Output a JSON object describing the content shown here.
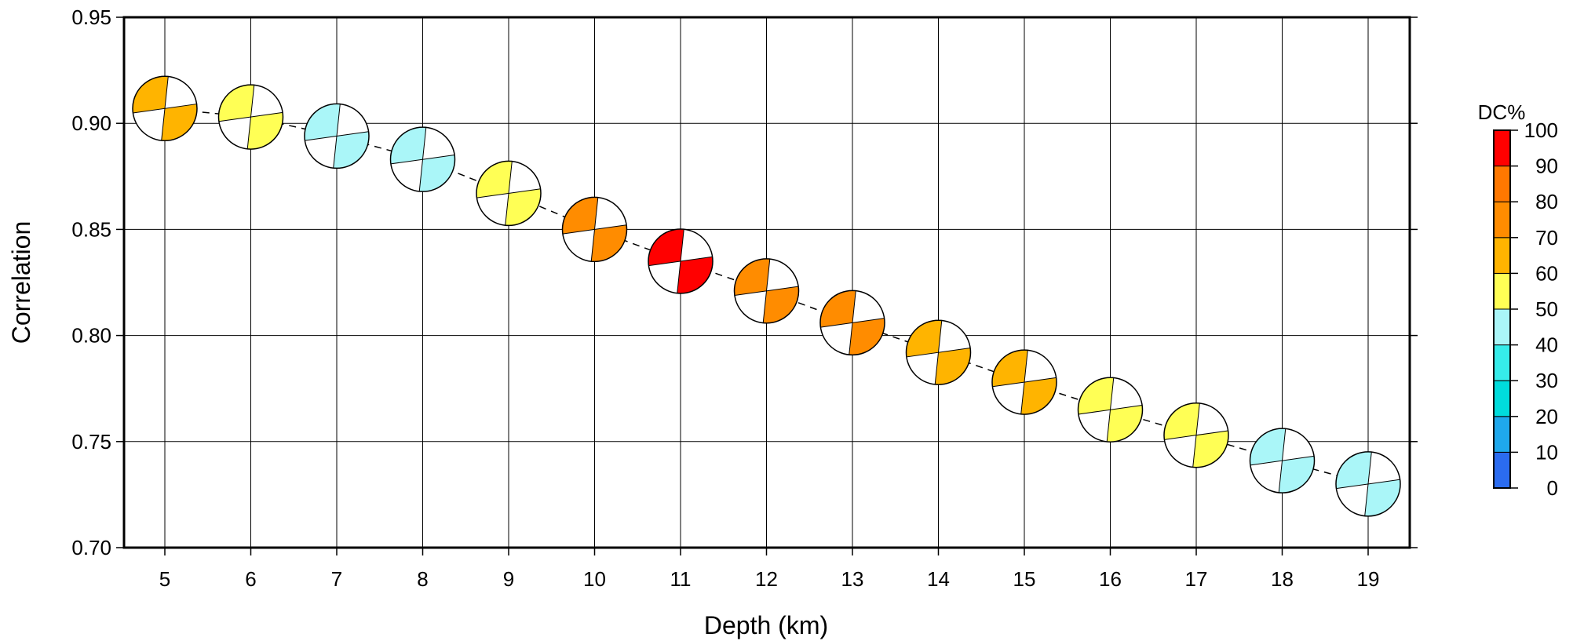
{
  "chart_data": {
    "type": "scatter",
    "xlabel": "Depth (km)",
    "ylabel": "Correlation",
    "xlim": [
      4.5,
      19.5
    ],
    "ylim": [
      0.7,
      0.95
    ],
    "x_ticks": [
      "5",
      "6",
      "7",
      "8",
      "9",
      "10",
      "11",
      "12",
      "13",
      "14",
      "15",
      "16",
      "17",
      "18",
      "19"
    ],
    "y_ticks": [
      "0.70",
      "0.75",
      "0.80",
      "0.85",
      "0.90",
      "0.95"
    ],
    "grid": true,
    "connector": "dashed",
    "points": [
      {
        "depth": 5,
        "correlation": 0.907,
        "dc_percent": 62
      },
      {
        "depth": 6,
        "correlation": 0.903,
        "dc_percent": 55
      },
      {
        "depth": 7,
        "correlation": 0.894,
        "dc_percent": 45
      },
      {
        "depth": 8,
        "correlation": 0.883,
        "dc_percent": 45
      },
      {
        "depth": 9,
        "correlation": 0.867,
        "dc_percent": 55
      },
      {
        "depth": 10,
        "correlation": 0.85,
        "dc_percent": 77
      },
      {
        "depth": 11,
        "correlation": 0.835,
        "dc_percent": 95
      },
      {
        "depth": 12,
        "correlation": 0.821,
        "dc_percent": 78
      },
      {
        "depth": 13,
        "correlation": 0.806,
        "dc_percent": 76
      },
      {
        "depth": 14,
        "correlation": 0.792,
        "dc_percent": 65
      },
      {
        "depth": 15,
        "correlation": 0.778,
        "dc_percent": 65
      },
      {
        "depth": 16,
        "correlation": 0.765,
        "dc_percent": 55
      },
      {
        "depth": 17,
        "correlation": 0.753,
        "dc_percent": 55
      },
      {
        "depth": 18,
        "correlation": 0.741,
        "dc_percent": 45
      },
      {
        "depth": 19,
        "correlation": 0.73,
        "dc_percent": 45
      }
    ],
    "colorbar": {
      "title": "DC%",
      "ticks": [
        "0",
        "10",
        "20",
        "30",
        "40",
        "50",
        "60",
        "70",
        "80",
        "90",
        "100"
      ],
      "bins": [
        {
          "from": 0,
          "to": 10,
          "color": "#2b6cf0"
        },
        {
          "from": 10,
          "to": 20,
          "color": "#1fa8ec"
        },
        {
          "from": 20,
          "to": 30,
          "color": "#00dcdc"
        },
        {
          "from": 30,
          "to": 40,
          "color": "#36ecea"
        },
        {
          "from": 40,
          "to": 50,
          "color": "#aaf6f8"
        },
        {
          "from": 50,
          "to": 60,
          "color": "#ffff55"
        },
        {
          "from": 60,
          "to": 70,
          "color": "#ffb400"
        },
        {
          "from": 70,
          "to": 80,
          "color": "#ff8c00"
        },
        {
          "from": 80,
          "to": 90,
          "color": "#ff7800"
        },
        {
          "from": 90,
          "to": 100,
          "color": "#ff0000"
        }
      ]
    }
  }
}
